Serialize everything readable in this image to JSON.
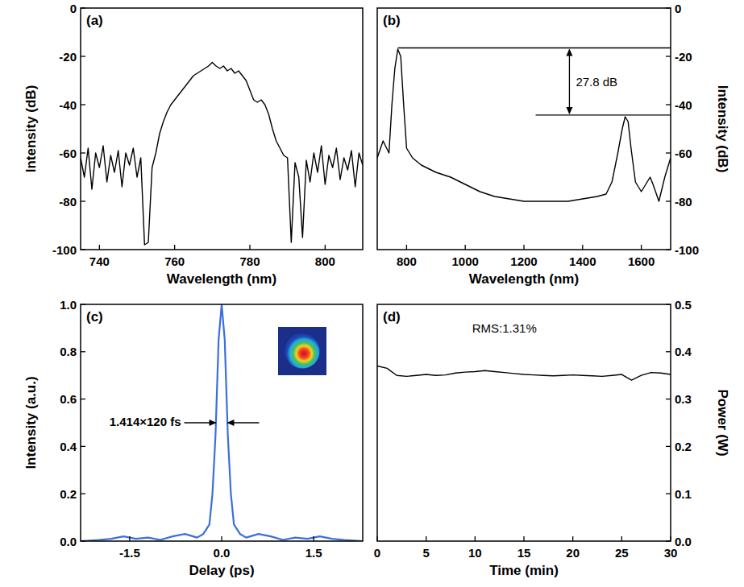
{
  "chart_data": [
    {
      "type": "line",
      "title": "(a)",
      "x_label": "Wavelength (nm)",
      "y_label": "Intensity (dB)",
      "xlim": [
        735,
        810
      ],
      "xticks": [
        740,
        760,
        780,
        800
      ],
      "ylim": [
        -100,
        0
      ],
      "yticks": [
        -100,
        -80,
        -60,
        -40,
        -20,
        0
      ],
      "x": [
        735,
        736,
        737,
        738,
        739,
        740,
        741,
        742,
        743,
        744,
        745,
        746,
        747,
        748,
        749,
        750,
        751,
        752,
        753,
        754,
        755,
        756,
        757,
        758,
        759,
        760,
        761,
        762,
        763,
        764,
        765,
        766,
        767,
        768,
        769,
        770,
        771,
        772,
        773,
        774,
        775,
        776,
        777,
        778,
        779,
        780,
        781,
        782,
        783,
        784,
        785,
        786,
        787,
        788,
        789,
        790,
        791,
        792,
        793,
        794,
        795,
        796,
        797,
        798,
        799,
        800,
        801,
        802,
        803,
        804,
        805,
        806,
        807,
        808,
        809,
        810
      ],
      "series": [
        {
          "color": "#000000",
          "values": [
            -62,
            -70,
            -58,
            -75,
            -60,
            -66,
            -57,
            -72,
            -61,
            -68,
            -59,
            -74,
            -60,
            -65,
            -58,
            -70,
            -62,
            -98,
            -97,
            -66,
            -60,
            -52,
            -47,
            -43,
            -40,
            -38,
            -36,
            -34,
            -32,
            -30,
            -28,
            -27,
            -26,
            -25,
            -24,
            -22.5,
            -24,
            -25,
            -24,
            -26,
            -25,
            -27,
            -26,
            -28,
            -30,
            -34,
            -38,
            -39,
            -38,
            -40,
            -44,
            -50,
            -55,
            -58,
            -61,
            -62,
            -97,
            -64,
            -70,
            -95,
            -63,
            -72,
            -60,
            -68,
            -57,
            -73,
            -61,
            -66,
            -58,
            -71,
            -62,
            -67,
            -59,
            -74,
            -60,
            -65
          ]
        }
      ]
    },
    {
      "type": "line",
      "title": "(b)",
      "x_label": "Wavelength (nm)",
      "y_label": "Intensity (dB)",
      "xlim": [
        700,
        1700
      ],
      "xticks": [
        800,
        1000,
        1200,
        1400,
        1600
      ],
      "y2lim": [
        -100,
        0
      ],
      "y2ticks": [
        -100,
        -80,
        -60,
        -40,
        -20,
        0
      ],
      "x": [
        700,
        720,
        740,
        750,
        760,
        770,
        780,
        790,
        800,
        820,
        850,
        900,
        950,
        1000,
        1050,
        1100,
        1150,
        1200,
        1250,
        1300,
        1350,
        1400,
        1450,
        1480,
        1500,
        1520,
        1535,
        1545,
        1555,
        1565,
        1580,
        1600,
        1620,
        1630,
        1640,
        1660,
        1680,
        1700
      ],
      "series": [
        {
          "color": "#000000",
          "axis": "y2",
          "values": [
            -62,
            -55,
            -60,
            -40,
            -25,
            -17,
            -20,
            -40,
            -58,
            -62,
            -65,
            -68,
            -70,
            -73,
            -76,
            -78,
            -79,
            -80,
            -80,
            -80,
            -80,
            -79,
            -78,
            -77,
            -72,
            -60,
            -50,
            -45,
            -47,
            -58,
            -72,
            -76,
            -72,
            -70,
            -73,
            -80,
            -70,
            -62
          ]
        }
      ],
      "annotations": [
        {
          "text": "27.8 dB",
          "x_top": 770,
          "y_top": -16.5,
          "x_bottom": 1240,
          "y_bottom": -44.3
        }
      ]
    },
    {
      "type": "line",
      "title": "(c)",
      "x_label": "Delay (ps)",
      "y_label": "Intensity (a.u.)",
      "xlim": [
        -2.3,
        2.3
      ],
      "xticks": [
        -1.5,
        {
          "value": 0,
          "label": "0.0"
        },
        1.5
      ],
      "ylim": [
        0,
        1
      ],
      "yticks": [
        {
          "value": 0,
          "label": "0.0"
        },
        0.2,
        0.4,
        0.6,
        0.8,
        {
          "value": 1,
          "label": "1.0"
        }
      ],
      "x": [
        -2.3,
        -2.0,
        -1.8,
        -1.6,
        -1.4,
        -1.2,
        -1.0,
        -0.8,
        -0.6,
        -0.4,
        -0.3,
        -0.2,
        -0.15,
        -0.1,
        -0.05,
        0,
        0.05,
        0.1,
        0.15,
        0.2,
        0.3,
        0.4,
        0.6,
        0.8,
        1.0,
        1.2,
        1.4,
        1.6,
        1.8,
        2.0,
        2.3
      ],
      "series": [
        {
          "color": "#3b6fdc",
          "values": [
            0,
            0.005,
            0.01,
            0.02,
            0.01,
            0.015,
            0.005,
            0.02,
            0.03,
            0.015,
            0.03,
            0.07,
            0.2,
            0.45,
            0.85,
            1.0,
            0.85,
            0.45,
            0.2,
            0.07,
            0.03,
            0.015,
            0.03,
            0.02,
            0.005,
            0.015,
            0.01,
            0.02,
            0.01,
            0.005,
            0
          ]
        }
      ],
      "annotations": [
        {
          "text": "1.414×120 fs",
          "x": [
            -0.085,
            0.085
          ],
          "y": 0.5
        }
      ]
    },
    {
      "type": "line",
      "title": "(d)",
      "x_label": "Time (min)",
      "y_label": "Power (W)",
      "xlim": [
        0,
        30
      ],
      "xticks": [
        0,
        5,
        10,
        15,
        20,
        25,
        30
      ],
      "y2lim": [
        0,
        0.5
      ],
      "y2ticks": [
        {
          "value": 0,
          "label": "0.0"
        },
        0.1,
        0.2,
        0.3,
        0.4,
        0.5
      ],
      "x": [
        0,
        1,
        2,
        3,
        4,
        5,
        6,
        7,
        8,
        9,
        10,
        11,
        12,
        13,
        14,
        15,
        16,
        17,
        18,
        19,
        20,
        21,
        22,
        23,
        24,
        25,
        26,
        27,
        28,
        29,
        30
      ],
      "series": [
        {
          "color": "#000000",
          "axis": "y2",
          "values": [
            0.37,
            0.365,
            0.35,
            0.348,
            0.35,
            0.352,
            0.35,
            0.351,
            0.355,
            0.357,
            0.358,
            0.36,
            0.358,
            0.356,
            0.354,
            0.352,
            0.351,
            0.35,
            0.349,
            0.35,
            0.351,
            0.35,
            0.349,
            0.348,
            0.35,
            0.352,
            0.34,
            0.35,
            0.356,
            0.355,
            0.352
          ]
        }
      ],
      "annotations": [
        {
          "text": "RMS:1.31%",
          "x": 13,
          "y": 0.45
        }
      ]
    }
  ]
}
